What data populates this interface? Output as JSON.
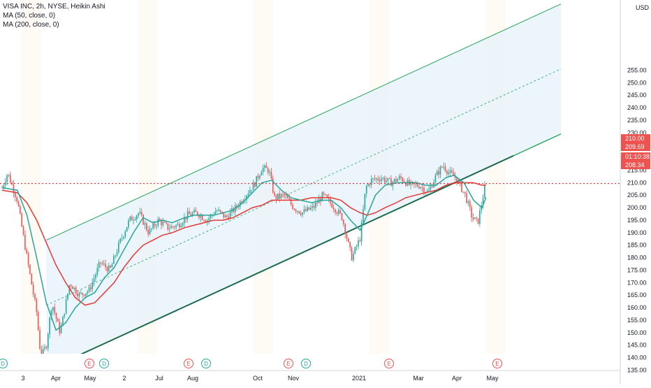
{
  "legend": {
    "title": "VISA INC, 2h, NYSE, Heikin Ashi",
    "ma50": "MA (50, close, 0)",
    "ma200": "MA (200, close, 0)"
  },
  "currency": "USD",
  "colors": {
    "up": "#26a69a",
    "down": "#ef5350",
    "ma50": "#26a69a",
    "ma200": "#e53935",
    "channel": "#26a65b",
    "channel_fill": "#e6f2fb",
    "price_line": "#e53935",
    "timer_tag": "#2962ff"
  },
  "chart_data": {
    "type": "candlestick",
    "y_ticks": [
      135,
      140,
      145,
      150,
      155,
      160,
      165,
      170,
      175,
      180,
      185,
      190,
      195,
      200,
      205,
      210,
      215,
      220,
      225,
      230,
      235,
      240,
      245,
      250,
      255
    ],
    "ylim": [
      135,
      255
    ],
    "x_ticks": [
      "3",
      "Apr",
      "May",
      "2",
      "Jul",
      "Aug",
      "Oct",
      "Nov",
      "2021",
      "Mar",
      "Apr",
      "May"
    ],
    "price_tags": {
      "high": "210.00",
      "last": "209.69",
      "timer": "01:10:38",
      "low": "208.34"
    },
    "current_price": 209.69,
    "events": [
      "D",
      "E",
      "D",
      "E",
      "D",
      "E",
      "D",
      "E",
      "E"
    ],
    "channel": {
      "lower": [
        {
          "date": "Mar 23",
          "y": 135.0
        },
        {
          "date": "Feb 1",
          "y": 215.0
        }
      ],
      "upper": [
        {
          "date": "Mar 23",
          "y": 187.0
        },
        {
          "date": "Feb 1",
          "y": 267.0
        }
      ],
      "mid": [
        {
          "date": "Mar 23",
          "y": 161.0
        },
        {
          "date": "Feb 1",
          "y": 241.0
        }
      ]
    },
    "anchors": [
      {
        "date": "Feb 20",
        "close": 208
      },
      {
        "date": "Feb 24",
        "close": 214
      },
      {
        "date": "Mar 2",
        "close": 203
      },
      {
        "date": "Mar 9",
        "close": 180
      },
      {
        "date": "Mar 16",
        "close": 158
      },
      {
        "date": "Mar 19",
        "close": 140
      },
      {
        "date": "Mar 23",
        "close": 145
      },
      {
        "date": "Mar 27",
        "close": 162
      },
      {
        "date": "Apr 2",
        "close": 150
      },
      {
        "date": "Apr 9",
        "close": 170
      },
      {
        "date": "Apr 16",
        "close": 165
      },
      {
        "date": "Apr 23",
        "close": 167
      },
      {
        "date": "May 1",
        "close": 178
      },
      {
        "date": "May 8",
        "close": 175
      },
      {
        "date": "May 15",
        "close": 186
      },
      {
        "date": "May 22",
        "close": 195
      },
      {
        "date": "May 29",
        "close": 198
      },
      {
        "date": "Jun 5",
        "close": 190
      },
      {
        "date": "Jun 12",
        "close": 195
      },
      {
        "date": "Jun 19",
        "close": 192
      },
      {
        "date": "Jun 26",
        "close": 193
      },
      {
        "date": "Jul 3",
        "close": 197
      },
      {
        "date": "Jul 10",
        "close": 198
      },
      {
        "date": "Jul 17",
        "close": 195
      },
      {
        "date": "Jul 24",
        "close": 199
      },
      {
        "date": "Jul 31",
        "close": 196
      },
      {
        "date": "Aug 7",
        "close": 200
      },
      {
        "date": "Aug 14",
        "close": 205
      },
      {
        "date": "Aug 21",
        "close": 210
      },
      {
        "date": "Aug 26",
        "close": 216
      },
      {
        "date": "Aug 31",
        "close": 215
      },
      {
        "date": "Sep 4",
        "close": 204
      },
      {
        "date": "Sep 11",
        "close": 205
      },
      {
        "date": "Sep 18",
        "close": 200
      },
      {
        "date": "Sep 24",
        "close": 198
      },
      {
        "date": "Oct 2",
        "close": 200
      },
      {
        "date": "Oct 9",
        "close": 205
      },
      {
        "date": "Oct 16",
        "close": 201
      },
      {
        "date": "Oct 23",
        "close": 196
      },
      {
        "date": "Oct 28",
        "close": 184
      },
      {
        "date": "Oct 30",
        "close": 180
      },
      {
        "date": "Nov 5",
        "close": 188
      },
      {
        "date": "Nov 9",
        "close": 208
      },
      {
        "date": "Nov 13",
        "close": 211
      },
      {
        "date": "Nov 20",
        "close": 212
      },
      {
        "date": "Nov 27",
        "close": 210
      },
      {
        "date": "Dec 4",
        "close": 212
      },
      {
        "date": "Dec 11",
        "close": 209
      },
      {
        "date": "Dec 18",
        "close": 209
      },
      {
        "date": "Dec 24",
        "close": 206
      },
      {
        "date": "Dec 30",
        "close": 213
      },
      {
        "date": "Jan 4",
        "close": 217
      },
      {
        "date": "Jan 8",
        "close": 214
      },
      {
        "date": "Jan 13",
        "close": 212
      },
      {
        "date": "Jan 20",
        "close": 205
      },
      {
        "date": "Jan 25",
        "close": 196
      },
      {
        "date": "Jan 29",
        "close": 194
      },
      {
        "date": "Feb 2",
        "close": 205
      },
      {
        "date": "Feb 4",
        "close": 210
      }
    ],
    "ma50": [
      {
        "date": "Feb 20",
        "y": 208
      },
      {
        "date": "Mar 2",
        "y": 207
      },
      {
        "date": "Mar 9",
        "y": 197
      },
      {
        "date": "Mar 16",
        "y": 180
      },
      {
        "date": "Mar 23",
        "y": 162
      },
      {
        "date": "Mar 30",
        "y": 151
      },
      {
        "date": "Apr 6",
        "y": 154
      },
      {
        "date": "Apr 13",
        "y": 160
      },
      {
        "date": "Apr 20",
        "y": 164
      },
      {
        "date": "Apr 27",
        "y": 166
      },
      {
        "date": "May 4",
        "y": 172
      },
      {
        "date": "May 11",
        "y": 176
      },
      {
        "date": "May 18",
        "y": 183
      },
      {
        "date": "May 25",
        "y": 190
      },
      {
        "date": "Jun 1",
        "y": 196
      },
      {
        "date": "Jun 8",
        "y": 194
      },
      {
        "date": "Jun 15",
        "y": 195
      },
      {
        "date": "Jun 22",
        "y": 194
      },
      {
        "date": "Jul 1",
        "y": 196
      },
      {
        "date": "Jul 8",
        "y": 197
      },
      {
        "date": "Jul 15",
        "y": 197
      },
      {
        "date": "Jul 22",
        "y": 197
      },
      {
        "date": "Jul 29",
        "y": 198
      },
      {
        "date": "Aug 5",
        "y": 199
      },
      {
        "date": "Aug 12",
        "y": 202
      },
      {
        "date": "Aug 19",
        "y": 206
      },
      {
        "date": "Aug 26",
        "y": 210
      },
      {
        "date": "Sep 2",
        "y": 211
      },
      {
        "date": "Sep 9",
        "y": 207
      },
      {
        "date": "Sep 16",
        "y": 204
      },
      {
        "date": "Sep 23",
        "y": 203
      },
      {
        "date": "Oct 1",
        "y": 202
      },
      {
        "date": "Oct 8",
        "y": 203
      },
      {
        "date": "Oct 15",
        "y": 203
      },
      {
        "date": "Oct 22",
        "y": 200
      },
      {
        "date": "Oct 29",
        "y": 195
      },
      {
        "date": "Nov 5",
        "y": 191
      },
      {
        "date": "Nov 10",
        "y": 197
      },
      {
        "date": "Nov 16",
        "y": 205
      },
      {
        "date": "Nov 23",
        "y": 209
      },
      {
        "date": "Dec 1",
        "y": 210
      },
      {
        "date": "Dec 8",
        "y": 210
      },
      {
        "date": "Dec 15",
        "y": 210
      },
      {
        "date": "Dec 22",
        "y": 209
      },
      {
        "date": "Dec 30",
        "y": 209
      },
      {
        "date": "Jan 6",
        "y": 212
      },
      {
        "date": "Jan 12",
        "y": 213
      },
      {
        "date": "Jan 19",
        "y": 210
      },
      {
        "date": "Jan 26",
        "y": 203
      },
      {
        "date": "Feb 1",
        "y": 200
      },
      {
        "date": "Feb 4",
        "y": 204
      }
    ],
    "ma200": [
      {
        "date": "Feb 20",
        "y": 207
      },
      {
        "date": "Mar 2",
        "y": 206
      },
      {
        "date": "Mar 9",
        "y": 202
      },
      {
        "date": "Mar 16",
        "y": 195
      },
      {
        "date": "Mar 23",
        "y": 186
      },
      {
        "date": "Mar 30",
        "y": 177
      },
      {
        "date": "Apr 6",
        "y": 170
      },
      {
        "date": "Apr 13",
        "y": 164
      },
      {
        "date": "Apr 20",
        "y": 161
      },
      {
        "date": "Apr 27",
        "y": 162
      },
      {
        "date": "May 4",
        "y": 166
      },
      {
        "date": "May 11",
        "y": 170
      },
      {
        "date": "May 18",
        "y": 176
      },
      {
        "date": "May 25",
        "y": 181
      },
      {
        "date": "Jun 1",
        "y": 185
      },
      {
        "date": "Jun 8",
        "y": 187
      },
      {
        "date": "Jun 15",
        "y": 189
      },
      {
        "date": "Jun 22",
        "y": 190
      },
      {
        "date": "Jul 1",
        "y": 192
      },
      {
        "date": "Jul 8",
        "y": 193
      },
      {
        "date": "Jul 15",
        "y": 194
      },
      {
        "date": "Jul 22",
        "y": 195
      },
      {
        "date": "Jul 29",
        "y": 195
      },
      {
        "date": "Aug 5",
        "y": 196
      },
      {
        "date": "Aug 12",
        "y": 198
      },
      {
        "date": "Aug 19",
        "y": 200
      },
      {
        "date": "Aug 26",
        "y": 201
      },
      {
        "date": "Sep 2",
        "y": 203
      },
      {
        "date": "Sep 9",
        "y": 203
      },
      {
        "date": "Sep 16",
        "y": 203
      },
      {
        "date": "Sep 23",
        "y": 203
      },
      {
        "date": "Oct 1",
        "y": 204
      },
      {
        "date": "Oct 8",
        "y": 204
      },
      {
        "date": "Oct 15",
        "y": 204
      },
      {
        "date": "Oct 22",
        "y": 203
      },
      {
        "date": "Oct 29",
        "y": 200
      },
      {
        "date": "Nov 5",
        "y": 198
      },
      {
        "date": "Nov 10",
        "y": 197
      },
      {
        "date": "Nov 16",
        "y": 198
      },
      {
        "date": "Nov 23",
        "y": 200
      },
      {
        "date": "Dec 1",
        "y": 202
      },
      {
        "date": "Dec 8",
        "y": 204
      },
      {
        "date": "Dec 15",
        "y": 205
      },
      {
        "date": "Dec 22",
        "y": 206
      },
      {
        "date": "Dec 30",
        "y": 207
      },
      {
        "date": "Jan 6",
        "y": 209
      },
      {
        "date": "Jan 12",
        "y": 210
      },
      {
        "date": "Jan 19",
        "y": 210
      },
      {
        "date": "Jan 26",
        "y": 210
      },
      {
        "date": "Feb 1",
        "y": 209
      },
      {
        "date": "Feb 4",
        "y": 209
      }
    ]
  }
}
